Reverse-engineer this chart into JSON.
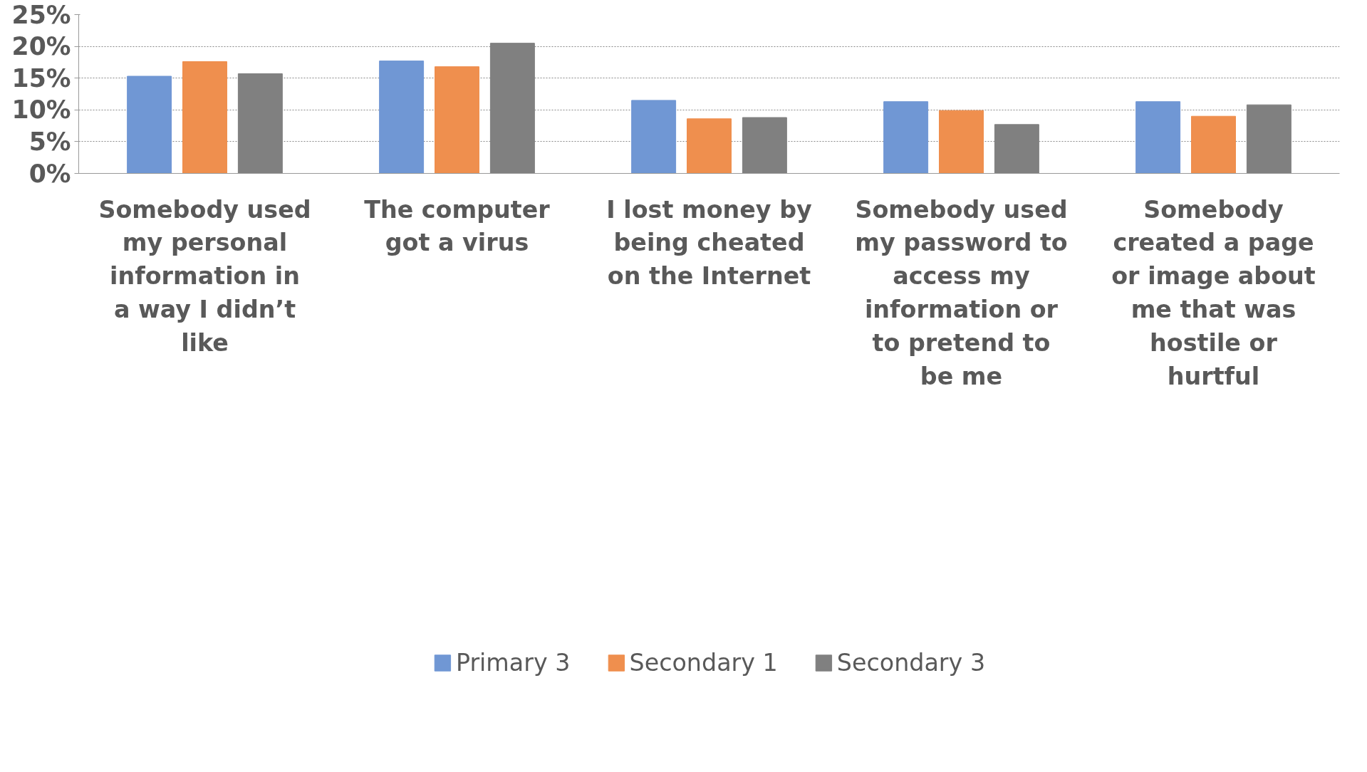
{
  "chart_data": {
    "type": "bar",
    "categories": [
      "Somebody used my personal information in a way I didn’t like",
      "The computer got a virus",
      "I lost money by being cheated on the Internet",
      "Somebody used my password to access my information or to pretend to be me",
      "Somebody created a page or image about me that was hostile or hurtful"
    ],
    "series": [
      {
        "name": "Primary 3",
        "color": "#7097d4",
        "values": [
          15.3,
          17.7,
          11.5,
          11.3,
          11.3
        ]
      },
      {
        "name": "Secondary 1",
        "color": "#ef8f4e",
        "values": [
          17.6,
          16.8,
          8.6,
          9.9,
          9.0
        ]
      },
      {
        "name": "Secondary 3",
        "color": "#808080",
        "values": [
          15.7,
          20.5,
          8.8,
          7.7,
          10.8
        ]
      }
    ],
    "ylim": [
      0,
      25
    ],
    "yticks": [
      {
        "value": 0,
        "label": "0%"
      },
      {
        "value": 5,
        "label": "5%"
      },
      {
        "value": 10,
        "label": "10%"
      },
      {
        "value": 15,
        "label": "15%"
      },
      {
        "value": 20,
        "label": "20%"
      },
      {
        "value": 25,
        "label": "25%"
      }
    ],
    "grid": "y",
    "legend": "bottom"
  }
}
